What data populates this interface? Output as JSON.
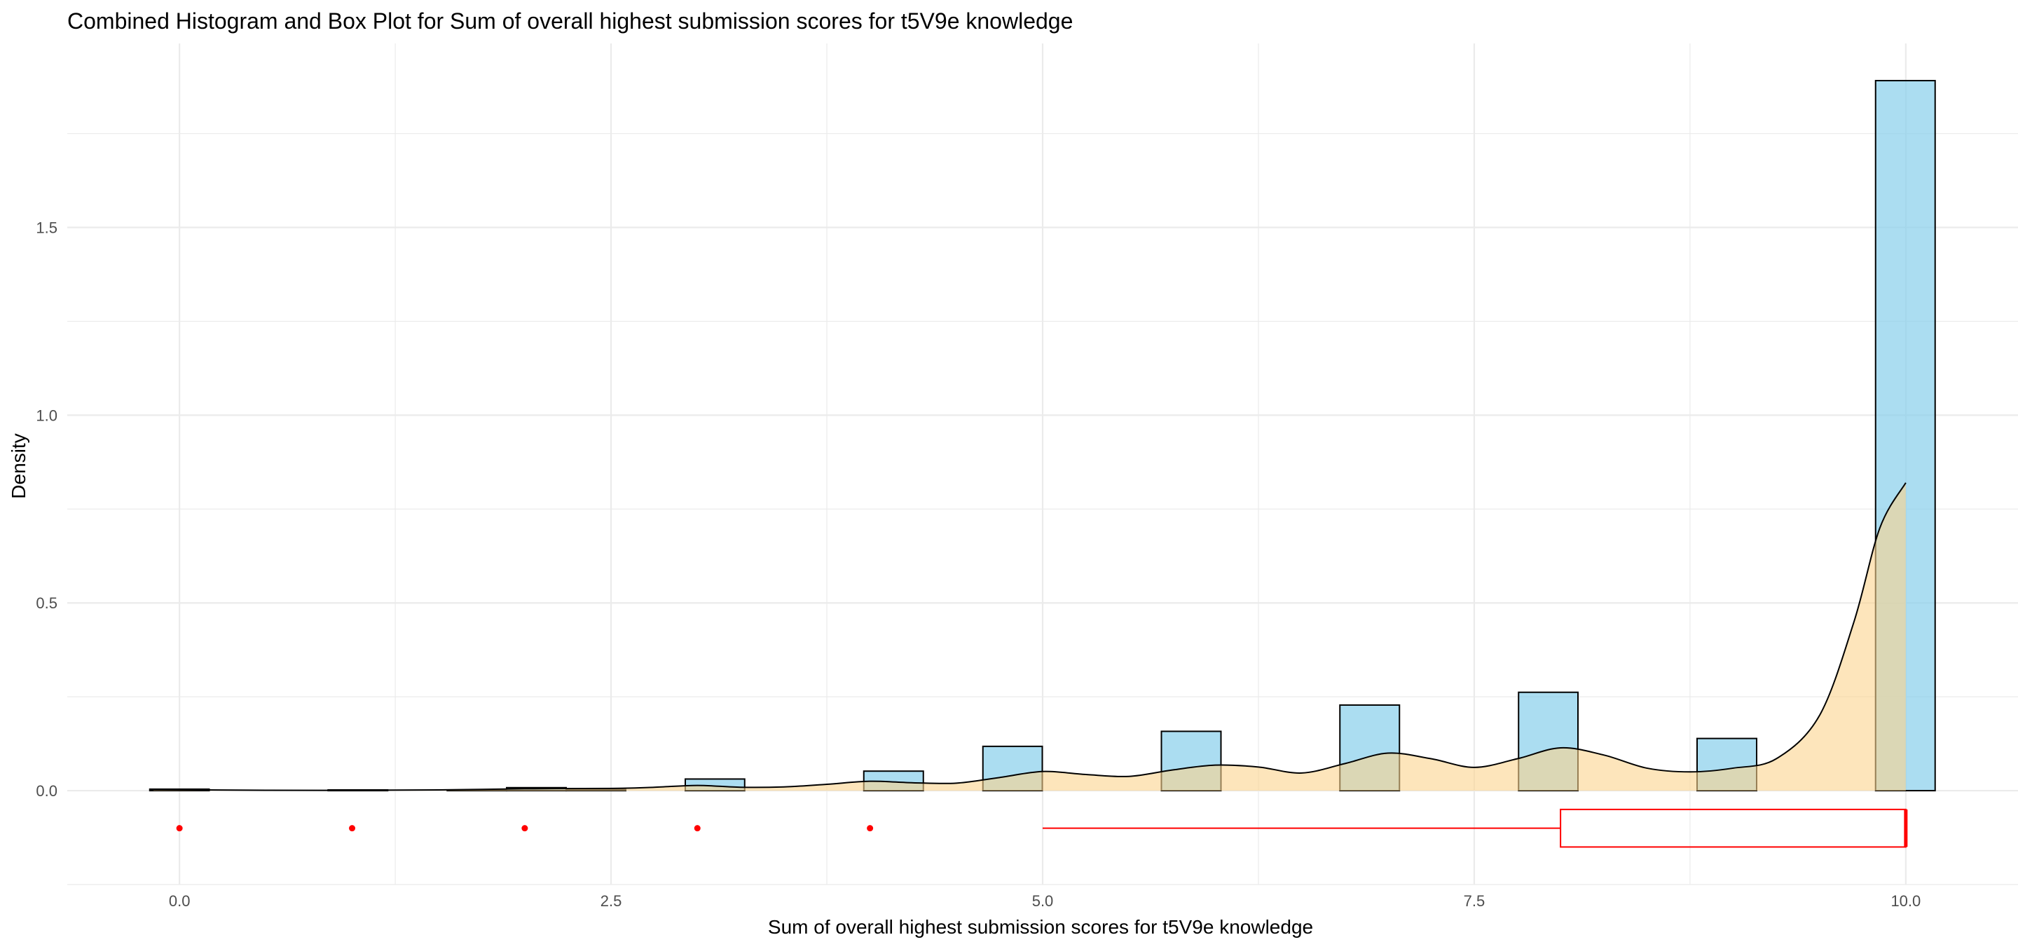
{
  "chart_data": {
    "type": "bar",
    "title": "Combined Histogram and Box Plot for Sum of overall highest submission scores for t5V9e knowledge",
    "xlabel": "Sum of overall highest submission scores for t5V9e knowledge",
    "ylabel": "Density",
    "x_ticks": [
      "0.0",
      "2.5",
      "5.0",
      "7.5",
      "10.0"
    ],
    "x_tick_values": [
      0,
      2.5,
      5,
      7.5,
      10
    ],
    "y_ticks": [
      "0.0",
      "0.5",
      "1.0",
      "1.5"
    ],
    "y_tick_values": [
      0,
      0.5,
      1,
      1.5
    ],
    "xlim": [
      -0.65,
      10.65
    ],
    "ylim": [
      -0.25,
      1.99
    ],
    "grid": true,
    "histogram": {
      "series_name": "",
      "fill": "#87ceeb",
      "bin_width": 0.345,
      "bins": [
        {
          "x_start": -0.172,
          "x_end": 0.172,
          "density": 0.004
        },
        {
          "x_start": 0.861,
          "x_end": 1.206,
          "density": 0.002
        },
        {
          "x_start": 1.551,
          "x_end": 1.895,
          "density": 0.002
        },
        {
          "x_start": 1.895,
          "x_end": 2.24,
          "density": 0.008
        },
        {
          "x_start": 2.24,
          "x_end": 2.585,
          "density": 0.003
        },
        {
          "x_start": 2.93,
          "x_end": 3.274,
          "density": 0.031
        },
        {
          "x_start": 3.964,
          "x_end": 4.309,
          "density": 0.052
        },
        {
          "x_start": 4.654,
          "x_end": 4.998,
          "density": 0.118
        },
        {
          "x_start": 5.688,
          "x_end": 6.033,
          "density": 0.158
        },
        {
          "x_start": 6.722,
          "x_end": 7.067,
          "density": 0.228
        },
        {
          "x_start": 7.757,
          "x_end": 8.101,
          "density": 0.262
        },
        {
          "x_start": 8.791,
          "x_end": 9.136,
          "density": 0.139
        },
        {
          "x_start": 9.825,
          "x_end": 10.17,
          "density": 1.891
        }
      ]
    },
    "density_curve": {
      "fill": "#fbd38d",
      "points": [
        [
          -0.15,
          0.003
        ],
        [
          0.5,
          0.001
        ],
        [
          1.0,
          0.001
        ],
        [
          1.5,
          0.002
        ],
        [
          2.0,
          0.005
        ],
        [
          2.5,
          0.006
        ],
        [
          2.75,
          0.009
        ],
        [
          3.0,
          0.014
        ],
        [
          3.25,
          0.009
        ],
        [
          3.5,
          0.01
        ],
        [
          3.75,
          0.017
        ],
        [
          4.0,
          0.025
        ],
        [
          4.25,
          0.021
        ],
        [
          4.5,
          0.02
        ],
        [
          4.75,
          0.035
        ],
        [
          5.0,
          0.051
        ],
        [
          5.25,
          0.043
        ],
        [
          5.5,
          0.038
        ],
        [
          5.75,
          0.055
        ],
        [
          6.0,
          0.068
        ],
        [
          6.25,
          0.063
        ],
        [
          6.5,
          0.047
        ],
        [
          6.75,
          0.072
        ],
        [
          7.0,
          0.1
        ],
        [
          7.25,
          0.085
        ],
        [
          7.5,
          0.062
        ],
        [
          7.75,
          0.085
        ],
        [
          8.0,
          0.114
        ],
        [
          8.25,
          0.095
        ],
        [
          8.5,
          0.06
        ],
        [
          8.75,
          0.05
        ],
        [
          9.0,
          0.06
        ],
        [
          9.25,
          0.085
        ],
        [
          9.5,
          0.2
        ],
        [
          9.7,
          0.45
        ],
        [
          9.85,
          0.7
        ],
        [
          10.0,
          0.82
        ]
      ]
    },
    "boxplot": {
      "color": "#ff0000",
      "whisker_low": 5.0,
      "q1": 8.0,
      "median": 10.0,
      "q3": 10.0,
      "whisker_high": 10.0,
      "outliers": [
        0,
        1,
        2,
        3,
        4
      ],
      "y_center": -0.1,
      "half_height": 0.05
    }
  },
  "colors": {
    "grid": "#ebebeb",
    "bar_fill": "#87ceeb",
    "density_fill": "#fbd38d",
    "outline": "#000000",
    "box": "#ff0000",
    "tick_text": "#4d4d4d"
  }
}
